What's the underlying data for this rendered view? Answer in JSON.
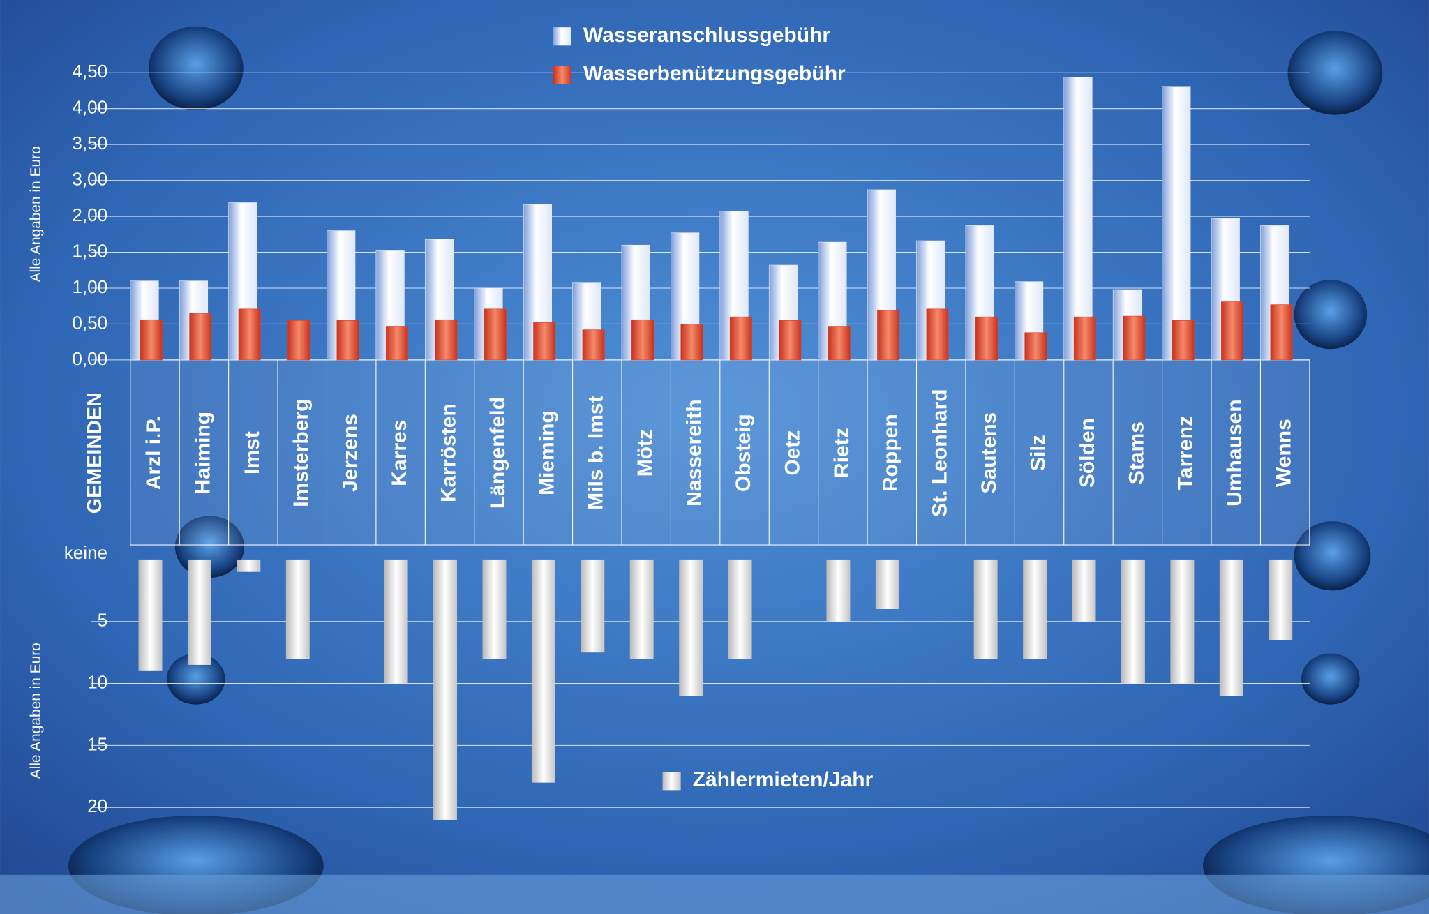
{
  "chart_data": [
    {
      "type": "bar",
      "xlabel": "GEMEINDEN",
      "ylabel": "Alle Angaben in Euro",
      "categories": [
        "Arzl i.P.",
        "Haiming",
        "Imst",
        "Imsterberg",
        "Jerzens",
        "Karres",
        "Karrösten",
        "Längenfeld",
        "Mieming",
        "Mils b. Imst",
        "Mötz",
        "Nassereith",
        "Obsteig",
        "Oetz",
        "Rietz",
        "Roppen",
        "St. Leonhard",
        "Sautens",
        "Silz",
        "Sölden",
        "Stams",
        "Tarrenz",
        "Umhausen",
        "Wenns"
      ],
      "series": [
        {
          "name": "Wasseranschlussgebühr",
          "color": "#e8eefa",
          "values": [
            1.1,
            1.1,
            2.38,
            null,
            1.8,
            1.52,
            1.68,
            1.0,
            2.33,
            1.08,
            1.6,
            1.77,
            2.15,
            1.32,
            1.64,
            2.74,
            1.66,
            1.87,
            1.09,
            4.44,
            0.98,
            4.31,
            1.97,
            1.87
          ]
        },
        {
          "name": "Wasserbenützungsgebühr",
          "color": "#d8402a",
          "values": [
            0.56,
            0.65,
            0.71,
            0.55,
            0.55,
            0.47,
            0.56,
            0.71,
            0.52,
            0.42,
            0.56,
            0.5,
            0.6,
            0.55,
            0.47,
            0.69,
            0.71,
            0.6,
            0.38,
            0.6,
            0.61,
            0.55,
            0.81,
            0.77
          ]
        }
      ],
      "ylim": [
        0,
        4.5
      ],
      "yticks": [
        {
          "value": 0,
          "label": "0,00"
        },
        {
          "value": 0.5,
          "label": "0,50"
        },
        {
          "value": 1,
          "label": "1,00"
        },
        {
          "value": 1.5,
          "label": "1,50"
        },
        {
          "value": 2,
          "label": "2,00"
        },
        {
          "value": 3,
          "label": "3,00"
        },
        {
          "value": 3.5,
          "label": "3,50"
        },
        {
          "value": 4,
          "label": "4,00"
        },
        {
          "value": 4.5,
          "label": "4,50"
        }
      ],
      "grid": true,
      "legend": "top"
    },
    {
      "type": "bar",
      "ylabel": "Alle Angaben in Euro",
      "inverted": true,
      "series": [
        {
          "name": "Zählermieten/Jahr",
          "color": "#e6e6e6",
          "values": [
            9,
            8.5,
            1,
            8,
            null,
            10,
            21,
            8,
            18,
            7.5,
            8,
            11,
            8,
            null,
            5,
            4,
            null,
            8,
            8,
            5,
            10,
            10,
            11,
            6.5
          ]
        }
      ],
      "ylim": [
        0,
        20
      ],
      "yticks": [
        {
          "value": 0,
          "label": "keine"
        },
        5,
        10,
        15,
        20
      ],
      "grid": true,
      "legend": "bottom"
    }
  ]
}
